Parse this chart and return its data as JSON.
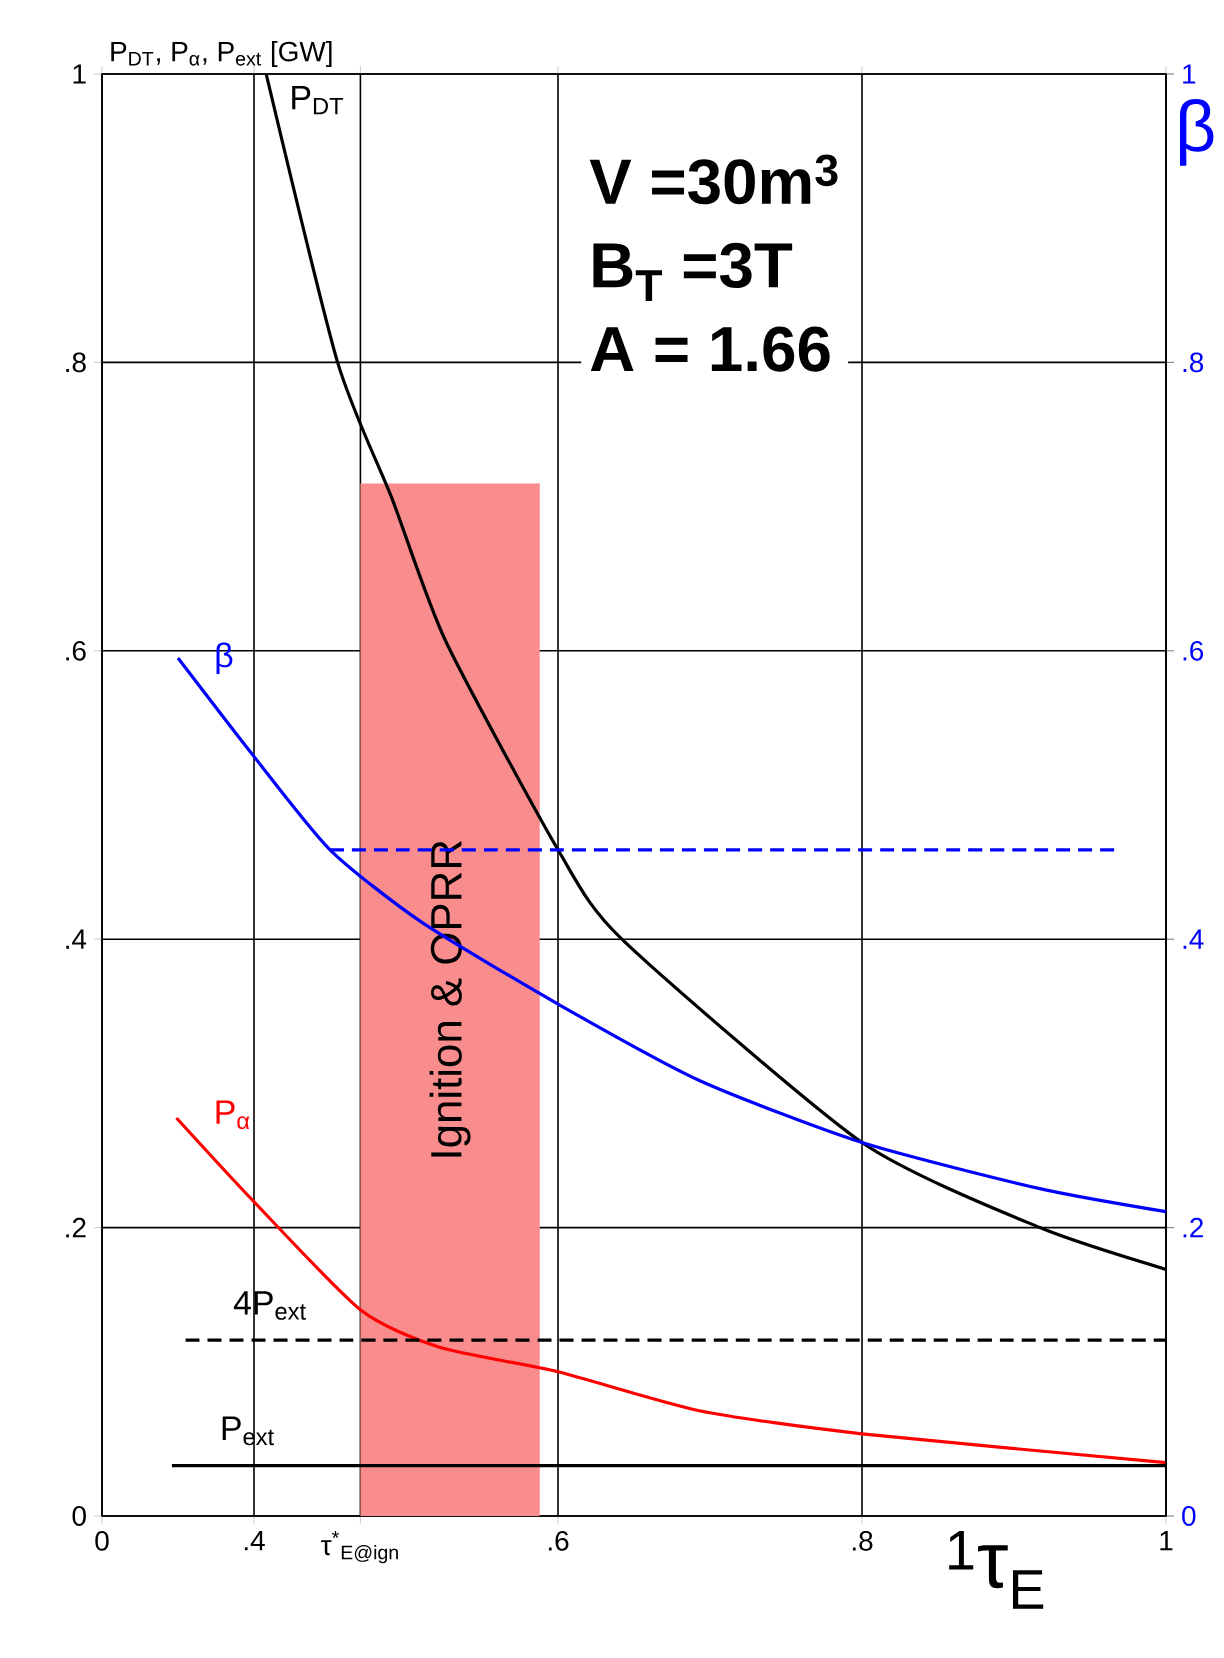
{
  "chart_data": {
    "type": "line",
    "ylabel": "P$_{DT}$, P$_{α}$, P$_{ext}$ [GW]",
    "y2label": "β",
    "xlabel": "$^{1}$τ$_{E}$",
    "xlim": [
      0.3,
      1.0
    ],
    "xticks": [
      {
        "value": 0.3,
        "label": "0"
      },
      {
        "value": 0.4,
        "label": ".4"
      },
      {
        "value": 0.47,
        "label": "τ$^{*}$$_{E@ign}$"
      },
      {
        "value": 0.6,
        "label": ".6"
      },
      {
        "value": 0.8,
        "label": ".8"
      },
      1
    ],
    "ylim": [
      0,
      1
    ],
    "yticks": [
      0,
      {
        "value": 0.2,
        "label": ".2"
      },
      {
        "value": 0.4,
        "label": ".4"
      },
      {
        "value": 0.6,
        "label": ".6"
      },
      {
        "value": 0.8,
        "label": ".8"
      },
      1
    ],
    "y2lim": [
      0,
      1
    ],
    "y2ticks": [
      0,
      {
        "value": 0.2,
        "label": ".2"
      },
      {
        "value": 0.4,
        "label": ".4"
      },
      {
        "value": 0.6,
        "label": ".6"
      },
      {
        "value": 0.8,
        "label": ".8"
      },
      1
    ],
    "grid": true,
    "annotations": [
      "V =30m$^{3}$",
      "B$_{T}$ =3T",
      "A = 1.66"
    ],
    "series": [
      {
        "type": "area",
        "name": "Ignition & OPRR",
        "color": "#f98c8c",
        "x": [
          0.47,
          0.588
        ],
        "values": [
          0.716,
          0.716
        ]
      },
      {
        "name": "P$_{DT}$",
        "color": "#000000",
        "x": [
          0.408,
          0.455,
          0.491,
          0.526,
          0.6,
          0.642,
          0.8,
          0.917,
          1.0
        ],
        "values": [
          1.0,
          0.8,
          0.705,
          0.607,
          0.462,
          0.4,
          0.259,
          0.2,
          0.171
        ]
      },
      {
        "name": "β",
        "color": "#0000ff",
        "axis": "y2",
        "x": [
          0.35,
          0.399,
          0.45,
          0.51,
          0.6,
          0.693,
          0.8,
          0.917,
          1.0
        ],
        "values": [
          0.595,
          0.528,
          0.462,
          0.412,
          0.355,
          0.302,
          0.259,
          0.227,
          0.211
        ]
      },
      {
        "name": "P$_{α}$",
        "color": "#ff0000",
        "x": [
          0.349,
          0.399,
          0.47,
          0.522,
          0.6,
          0.693,
          0.8,
          1.0
        ],
        "values": [
          0.276,
          0.219,
          0.143,
          0.117,
          0.1,
          0.073,
          0.057,
          0.037
        ]
      },
      {
        "name": "4P$_{ext}$",
        "color": "#000000",
        "line_style": "dashed",
        "x": [
          0.355,
          1.0
        ],
        "values": [
          0.122,
          0.122
        ]
      },
      {
        "name": "P$_{ext}$",
        "color": "#000000",
        "x": [
          0.346,
          1.0
        ],
        "values": [
          0.035,
          0.035
        ]
      },
      {
        "color": "#0000ff",
        "axis": "y2",
        "line_style": "dashed",
        "x": [
          0.45,
          0.967
        ],
        "values": [
          0.462,
          0.462
        ]
      }
    ]
  }
}
